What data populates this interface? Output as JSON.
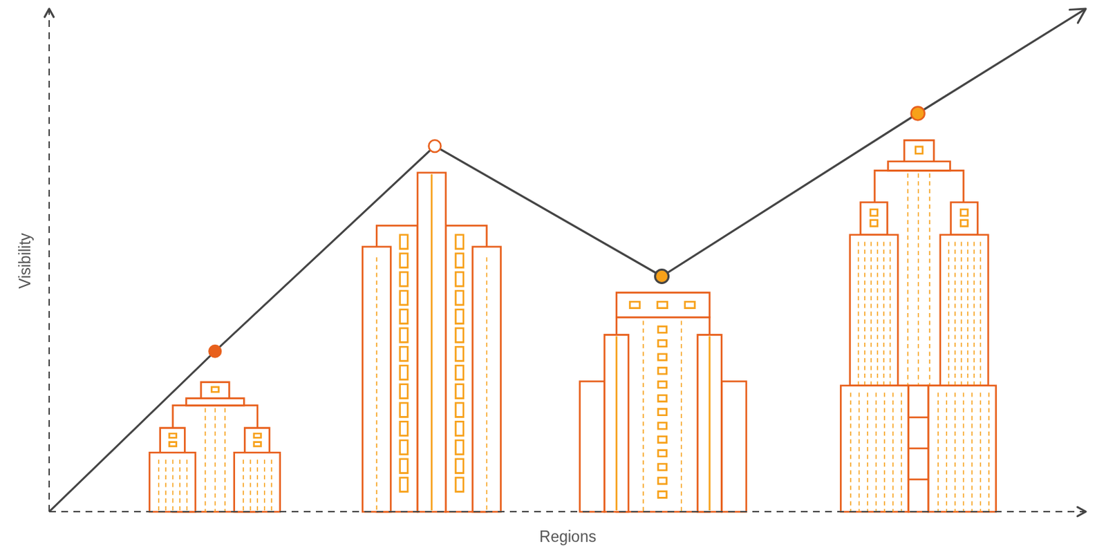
{
  "chart_data": {
    "type": "line",
    "x_label": "Regions",
    "y_label": "Visibility",
    "x": [
      0,
      16,
      37.2,
      59.1,
      83.8,
      100
    ],
    "values": [
      0,
      31.9,
      72.7,
      46.8,
      79.2,
      100
    ],
    "color": "#444444",
    "marker": "circle",
    "xlim": [
      0,
      100
    ],
    "ylim": [
      0,
      100
    ],
    "grid": false,
    "tick_labels": false
  }
}
